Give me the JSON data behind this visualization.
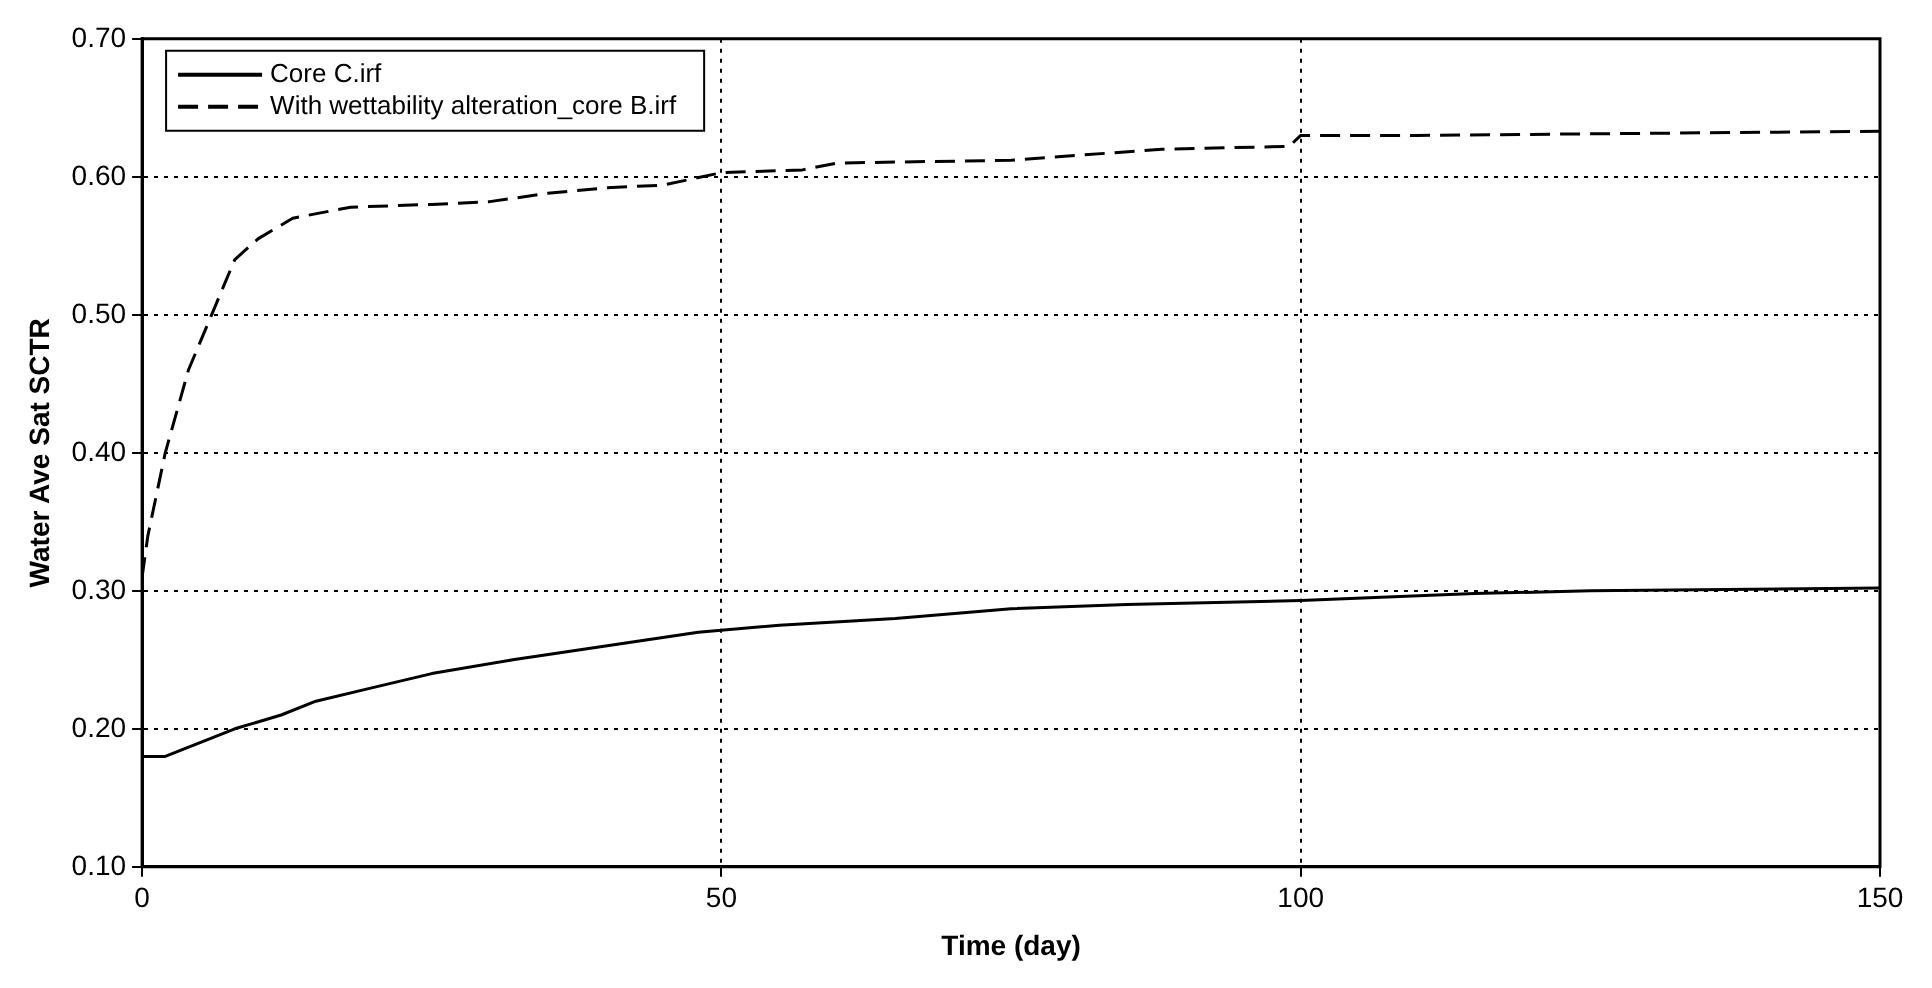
{
  "chart_data": {
    "type": "line",
    "xlabel": "Time (day)",
    "ylabel": "Water Ave Sat SCTR",
    "xlim": [
      0,
      150
    ],
    "xticks": [
      0,
      50,
      100,
      150
    ],
    "ylim": [
      0.1,
      0.7
    ],
    "yticks": [
      {
        "value": 0.1,
        "label": "0.10"
      },
      {
        "value": 0.2,
        "label": "0.20"
      },
      {
        "value": 0.3,
        "label": "0.30"
      },
      {
        "value": 0.4,
        "label": "0.40"
      },
      {
        "value": 0.5,
        "label": "0.50"
      },
      {
        "value": 0.6,
        "label": "0.60"
      },
      {
        "value": 0.7,
        "label": "0.70"
      }
    ],
    "grid": true,
    "legend": "top left",
    "marker": "none",
    "series": [
      {
        "name": "Core C.irf",
        "color": "#000000",
        "line_style": "solid",
        "x": [
          0,
          2,
          5,
          8,
          12,
          15,
          20,
          25,
          32,
          40,
          48,
          55,
          65,
          75,
          85,
          100,
          115,
          125,
          150
        ],
        "values": [
          0.18,
          0.18,
          0.19,
          0.2,
          0.21,
          0.22,
          0.23,
          0.24,
          0.25,
          0.26,
          0.27,
          0.275,
          0.28,
          0.287,
          0.29,
          0.293,
          0.298,
          0.3,
          0.302
        ]
      },
      {
        "name": "With wettability alteration_core B.irf",
        "color": "#000000",
        "line_style": "dashed",
        "x": [
          0,
          0.5,
          1,
          2,
          3,
          4,
          5,
          6,
          7,
          8,
          10,
          13,
          18,
          25,
          30,
          35,
          40,
          45,
          50,
          57,
          60,
          75,
          88,
          99,
          100,
          110,
          150
        ],
        "values": [
          0.31,
          0.34,
          0.36,
          0.4,
          0.43,
          0.46,
          0.48,
          0.5,
          0.52,
          0.54,
          0.555,
          0.57,
          0.578,
          0.58,
          0.582,
          0.588,
          0.592,
          0.594,
          0.603,
          0.605,
          0.61,
          0.612,
          0.62,
          0.622,
          0.63,
          0.63,
          0.633
        ]
      }
    ]
  }
}
